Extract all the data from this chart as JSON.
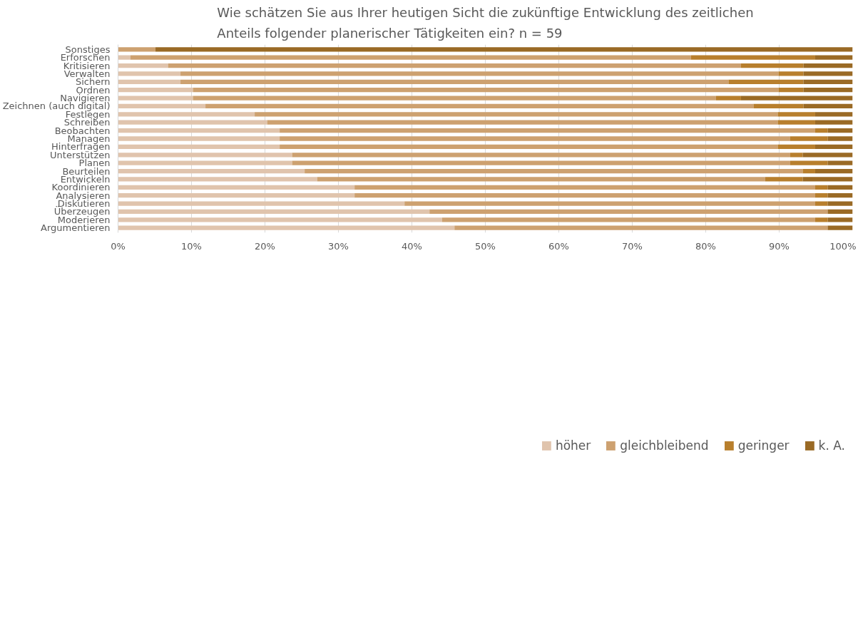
{
  "chart_data": {
    "type": "bar",
    "orientation": "horizontal",
    "stacked": true,
    "title": "Wie schätzen Sie aus Ihrer heutigen Sicht die zukünftige Entwicklung des zeitlichen\nAnteils folgender planerischer Tätigkeiten ein? n = 59",
    "categories": [
      "Sonstiges",
      "Erforschen",
      "Kritisieren",
      "Verwalten",
      "Sichern",
      "Ordnen",
      "Navigieren",
      "Zeichnen (auch digital)",
      "Festlegen",
      "Schreiben",
      "Beobachten",
      "Managen",
      "Hinterfragen",
      "Unterstützen",
      "Planen",
      "Beurteilen",
      "Entwickeln",
      "Koordinieren",
      "Analysieren",
      "Diskutieren",
      "Überzeugen",
      "Moderieren",
      "Argumentieren"
    ],
    "series": [
      {
        "name": "höher",
        "color": "#e0c4ad",
        "values": [
          0,
          1.7,
          6.8,
          8.5,
          8.5,
          10.2,
          10.2,
          11.9,
          18.6,
          20.3,
          22.0,
          22.0,
          22.0,
          23.7,
          23.7,
          25.4,
          27.1,
          32.2,
          32.2,
          39.0,
          42.4,
          44.1,
          45.8
        ]
      },
      {
        "name": "gleichbleibend",
        "color": "#cda170",
        "values": [
          5.1,
          76.3,
          78.0,
          81.4,
          74.6,
          79.7,
          71.2,
          74.6,
          71.2,
          69.5,
          72.9,
          69.5,
          67.8,
          67.8,
          67.8,
          67.8,
          61.0,
          62.7,
          62.7,
          55.9,
          54.2,
          50.8,
          50.8
        ]
      },
      {
        "name": "geringer",
        "color": "#b87f2d",
        "values": [
          0,
          16.9,
          8.5,
          3.4,
          10.2,
          3.4,
          3.4,
          6.8,
          5.1,
          5.1,
          1.7,
          5.1,
          5.1,
          1.7,
          5.1,
          1.7,
          5.1,
          1.7,
          1.7,
          1.7,
          0,
          1.7,
          0
        ]
      },
      {
        "name": "k. A.",
        "color": "#9a6a25",
        "values": [
          94.9,
          5.1,
          6.7,
          6.7,
          6.7,
          6.7,
          15.2,
          6.7,
          5.1,
          5.1,
          3.4,
          3.4,
          5.1,
          6.8,
          3.4,
          5.1,
          6.8,
          3.4,
          3.4,
          3.4,
          3.4,
          3.4,
          3.4
        ]
      }
    ],
    "xlim": [
      0,
      100
    ],
    "xticks": [
      {
        "value": 0,
        "label": "0%"
      },
      {
        "value": 10,
        "label": "10%"
      },
      {
        "value": 20,
        "label": "20%"
      },
      {
        "value": 30,
        "label": "30%"
      },
      {
        "value": 40,
        "label": "40%"
      },
      {
        "value": 50,
        "label": "50%"
      },
      {
        "value": 60,
        "label": "60%"
      },
      {
        "value": 70,
        "label": "70%"
      },
      {
        "value": 80,
        "label": "80%"
      },
      {
        "value": 90,
        "label": "90%"
      },
      {
        "value": 100,
        "label": "100%"
      }
    ],
    "grid": "x",
    "legend": "bottom"
  }
}
